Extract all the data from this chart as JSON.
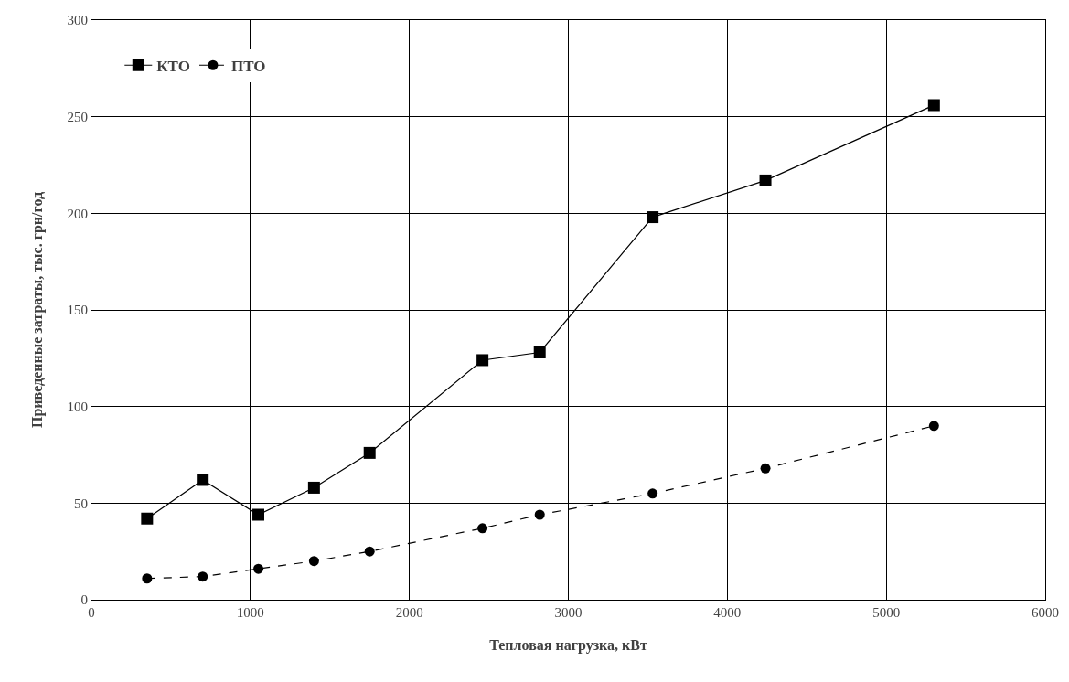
{
  "chart_data": {
    "type": "line",
    "xlabel": "Тепловая нагрузка, кВт",
    "ylabel": "Приведенные затраты, тыс. грн/год",
    "xlim": [
      0,
      6000
    ],
    "xticks": [
      0,
      1000,
      2000,
      3000,
      4000,
      5000,
      6000
    ],
    "ylim": [
      0,
      300
    ],
    "yticks": [
      0,
      50,
      100,
      150,
      200,
      250,
      300
    ],
    "grid": true,
    "legend": "top left",
    "series": [
      {
        "name": "КТО",
        "color": "#000000",
        "marker": "square",
        "line_style": "solid",
        "x": [
          350,
          700,
          1050,
          1400,
          1750,
          2460,
          2820,
          3530,
          4240,
          5300
        ],
        "values": [
          42,
          62,
          44,
          58,
          76,
          124,
          128,
          198,
          217,
          256
        ]
      },
      {
        "name": "ПТО",
        "color": "#000000",
        "marker": "circle",
        "line_style": "dashed",
        "x": [
          350,
          700,
          1050,
          1400,
          1750,
          2460,
          2820,
          3530,
          4240,
          5300
        ],
        "values": [
          11,
          12,
          16,
          20,
          25,
          37,
          44,
          55,
          68,
          90
        ]
      }
    ]
  }
}
